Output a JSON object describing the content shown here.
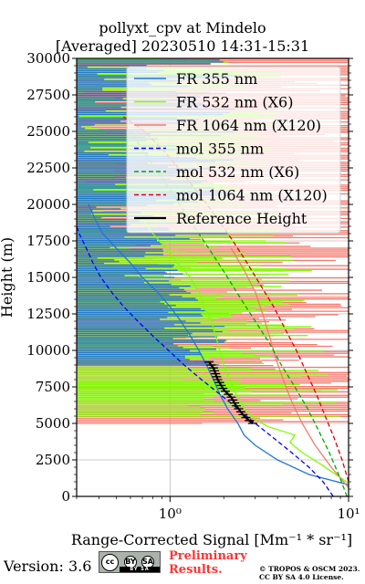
{
  "header": {
    "title_line1": "pollyxt_cpv at Mindelo",
    "title_line2": "[Averaged] 20230510 14:31-15:31"
  },
  "footer": {
    "version": "Version: 3.6",
    "cc_badge": {
      "cc": "cc",
      "by": "BY",
      "sa": "SA"
    },
    "preliminary": [
      "Preliminary",
      "Results."
    ],
    "copyright": [
      "© TROPOS & OSCM 2023.",
      "CC BY SA 4.0 License."
    ]
  },
  "chart_data": {
    "type": "line",
    "xlabel": "Range-Corrected Signal [Mm⁻¹ * sr⁻¹]",
    "ylabel": "Height (m)",
    "xscale": "log",
    "xlim": [
      0.3,
      10
    ],
    "ylim": [
      0,
      30000
    ],
    "x_ticks": [
      "10⁰",
      "10¹"
    ],
    "y_ticks": [
      0,
      2500,
      5000,
      7500,
      10000,
      12500,
      15000,
      17500,
      20000,
      22500,
      25000,
      27500,
      30000
    ],
    "grid": true,
    "legend_position": "top-right",
    "series": [
      {
        "name": "FR 355 nm",
        "color": "#1f77d4",
        "style": "solid",
        "points": [
          [
            10,
            800
          ],
          [
            6,
            1500
          ],
          [
            4,
            2500
          ],
          [
            3,
            3500
          ],
          [
            2.6,
            4200
          ],
          [
            2.4,
            5000
          ],
          [
            2.1,
            6000
          ],
          [
            1.9,
            7000
          ],
          [
            1.75,
            8000
          ],
          [
            1.6,
            9000
          ],
          [
            1.45,
            10000
          ],
          [
            1.3,
            11000
          ],
          [
            1.15,
            12000
          ],
          [
            1.0,
            13000
          ],
          [
            0.85,
            14000
          ],
          [
            0.7,
            15000
          ],
          [
            0.6,
            16000
          ],
          [
            0.5,
            17000
          ],
          [
            0.42,
            18000
          ],
          [
            0.38,
            19000
          ],
          [
            0.35,
            20000
          ]
        ]
      },
      {
        "name": "FR 532 nm (X6)",
        "color": "#7fff00",
        "style": "solid",
        "points": [
          [
            10,
            900
          ],
          [
            7,
            2200
          ],
          [
            5.5,
            3000
          ],
          [
            4.7,
            3700
          ],
          [
            5,
            4200
          ],
          [
            3.5,
            4800
          ],
          [
            3.0,
            5300
          ],
          [
            2.6,
            6000
          ],
          [
            2.35,
            7000
          ],
          [
            2.15,
            8000
          ],
          [
            2.0,
            9000
          ],
          [
            1.9,
            10000
          ],
          [
            1.8,
            11000
          ],
          [
            1.7,
            12000
          ],
          [
            1.55,
            13000
          ],
          [
            1.45,
            14000
          ],
          [
            1.3,
            15000
          ],
          [
            1.1,
            16000
          ],
          [
            0.95,
            17000
          ],
          [
            0.8,
            18000
          ],
          [
            0.7,
            19000
          ]
        ]
      },
      {
        "name": "FR 1064 nm (X120)",
        "color": "#f47a6e",
        "style": "solid",
        "points": [
          [
            10,
            600
          ],
          [
            8,
            2000
          ],
          [
            6.5,
            3500
          ],
          [
            5.5,
            5000
          ],
          [
            4.8,
            6500
          ],
          [
            4.3,
            8000
          ],
          [
            3.9,
            9500
          ],
          [
            3.6,
            11000
          ],
          [
            3.3,
            12500
          ],
          [
            3.0,
            14000
          ],
          [
            2.6,
            15500
          ],
          [
            2.2,
            17000
          ]
        ]
      },
      {
        "name": "mol 355 nm",
        "color": "#0000ff",
        "style": "dashed",
        "points": [
          [
            8.2,
            0
          ],
          [
            7.2,
            1000
          ],
          [
            6.0,
            2000
          ],
          [
            4.8,
            3000
          ],
          [
            3.8,
            4000
          ],
          [
            3.0,
            5000
          ],
          [
            2.4,
            6000
          ],
          [
            1.9,
            7000
          ],
          [
            1.5,
            8000
          ],
          [
            1.2,
            9000
          ],
          [
            0.98,
            10000
          ],
          [
            0.8,
            11000
          ],
          [
            0.66,
            12000
          ],
          [
            0.55,
            13000
          ],
          [
            0.47,
            14000
          ],
          [
            0.41,
            15000
          ],
          [
            0.37,
            16000
          ],
          [
            0.34,
            17000
          ],
          [
            0.31,
            18000
          ],
          [
            0.3,
            18500
          ]
        ]
      },
      {
        "name": "mol 532 nm (X6)",
        "color": "#00aa00",
        "style": "dashed",
        "points": [
          [
            9.8,
            0
          ],
          [
            8.8,
            1500
          ],
          [
            7.8,
            3000
          ],
          [
            6.8,
            4500
          ],
          [
            5.9,
            6000
          ],
          [
            5.0,
            7500
          ],
          [
            4.2,
            9000
          ],
          [
            3.6,
            10500
          ],
          [
            3.0,
            12000
          ],
          [
            2.5,
            13500
          ],
          [
            2.1,
            15000
          ],
          [
            1.75,
            16500
          ],
          [
            1.45,
            18000
          ],
          [
            1.2,
            19500
          ],
          [
            1.0,
            21000
          ],
          [
            0.82,
            22500
          ],
          [
            0.68,
            24000
          ],
          [
            0.6,
            25000
          ]
        ]
      },
      {
        "name": "mol 1064 nm (X120)",
        "color": "#dd0000",
        "style": "dashed",
        "points": [
          [
            10,
            1000
          ],
          [
            9.2,
            2500
          ],
          [
            8.3,
            4000
          ],
          [
            7.4,
            5500
          ],
          [
            6.6,
            7000
          ],
          [
            5.8,
            8500
          ],
          [
            5.1,
            10000
          ],
          [
            4.4,
            11500
          ],
          [
            3.8,
            13000
          ],
          [
            3.2,
            14500
          ],
          [
            2.7,
            16000
          ],
          [
            2.25,
            17500
          ],
          [
            1.85,
            19000
          ],
          [
            1.5,
            20500
          ],
          [
            1.2,
            22000
          ],
          [
            0.95,
            23500
          ],
          [
            0.72,
            25000
          ],
          [
            0.55,
            26000
          ]
        ]
      },
      {
        "name": "Reference Height",
        "color": "#000000",
        "style": "solid",
        "points": [
          [
            2.9,
            5000
          ],
          [
            2.6,
            5500
          ],
          [
            2.35,
            6200
          ],
          [
            2.2,
            6800
          ],
          [
            2.0,
            7300
          ],
          [
            1.85,
            8000
          ],
          [
            1.75,
            8800
          ],
          [
            1.65,
            9200
          ]
        ]
      }
    ]
  }
}
